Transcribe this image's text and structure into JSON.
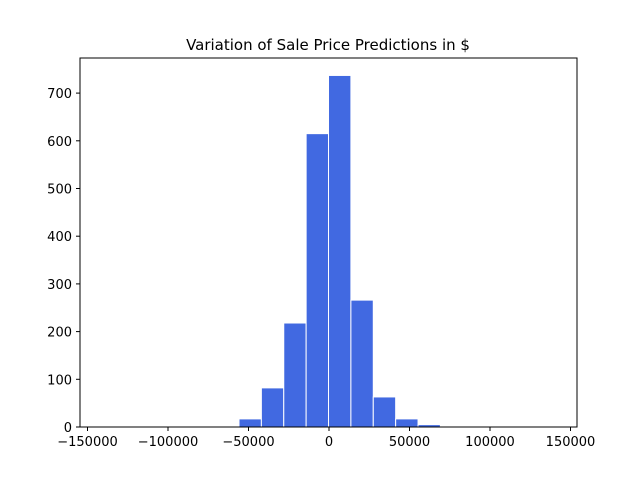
{
  "chart_data": {
    "type": "bar",
    "subtype": "histogram",
    "title": "Variation of Sale Price Predictions in $",
    "xlabel": "",
    "ylabel": "",
    "bar_color": "#4169e1",
    "edge_color": "#ffffff",
    "bin_edges": [
      -55900,
      -42000,
      -28100,
      -14200,
      -300,
      13600,
      27500,
      41400,
      55300,
      69200,
      83100
    ],
    "values": [
      17,
      82,
      218,
      615,
      737,
      266,
      63,
      17,
      5,
      2
    ],
    "xlim": [
      -155000,
      155000
    ],
    "ylim": [
      0,
      775
    ],
    "xticks": [
      -150000,
      -100000,
      -50000,
      0,
      50000,
      100000,
      150000
    ],
    "xtick_labels": [
      "−150000",
      "−100000",
      "−50000",
      "0",
      "50000",
      "100000",
      "150000"
    ],
    "yticks": [
      0,
      100,
      200,
      300,
      400,
      500,
      600,
      700
    ],
    "ytick_labels": [
      "0",
      "100",
      "200",
      "300",
      "400",
      "500",
      "600",
      "700"
    ],
    "grid": false,
    "legend": null
  }
}
